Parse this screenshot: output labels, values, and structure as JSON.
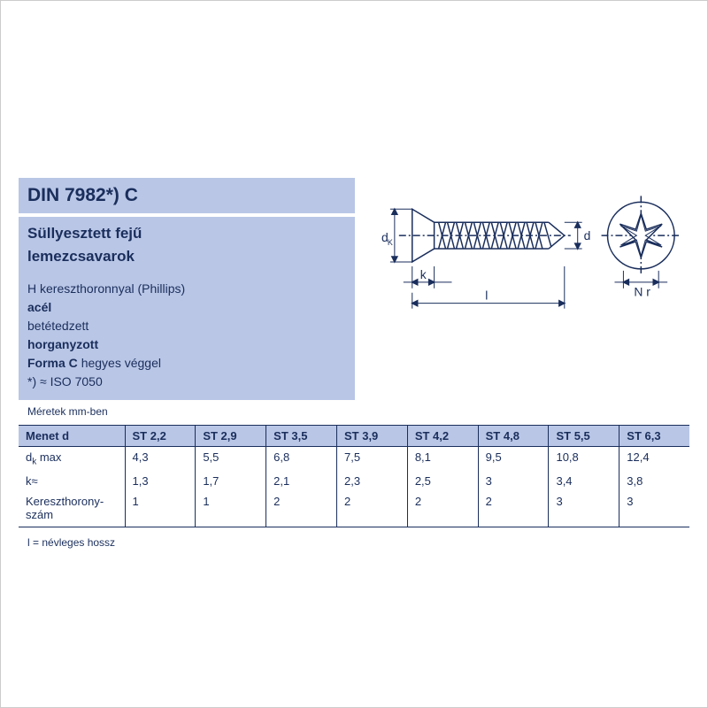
{
  "header": {
    "title": "DIN 7982*) C",
    "subtitle_line1": "Süllyesztett fejű",
    "subtitle_line2": "lemezcsavarok",
    "desc1_prefix": "H kereszthoronnyal ",
    "desc1_suffix": "(Phillips)",
    "desc2": "acél",
    "desc3": "betétedzett",
    "desc4": "horganyzott",
    "desc5_prefix": "Forma C ",
    "desc5_suffix": "hegyes véggel",
    "desc6": "*) ≈ ISO 7050",
    "dims_note": "Méretek mm-ben"
  },
  "diagram": {
    "dk_label": "d",
    "dk_sub": "K",
    "k_label": "k",
    "l_label": "l",
    "d_label": "d",
    "nr_label": "N r",
    "stroke": "#1a2e5c",
    "fill": "#ffffff"
  },
  "table": {
    "columns": [
      "Menet d",
      "ST 2,2",
      "ST 2,9",
      "ST 3,5",
      "ST 3,9",
      "ST 4,2",
      "ST 4,8",
      "ST 5,5",
      "ST 6,3"
    ],
    "rows": [
      {
        "label_html": "d<sub class='sub'>k</sub> max",
        "cells": [
          "4,3",
          "5,5",
          "6,8",
          "7,5",
          "8,1",
          "9,5",
          "10,8",
          "12,4"
        ]
      },
      {
        "label_html": "k≈",
        "cells": [
          "1,3",
          "1,7",
          "2,1",
          "2,3",
          "2,5",
          "3",
          "3,4",
          "3,8"
        ]
      },
      {
        "label_html": "Kereszthorony-<br>szám",
        "cells": [
          "1",
          "1",
          "2",
          "2",
          "2",
          "2",
          "3",
          "3"
        ]
      }
    ]
  },
  "footer": {
    "note": "l = névleges hossz"
  },
  "colors": {
    "header_bg": "#b9c6e6",
    "text": "#1a2e5c",
    "border": "#1a2e5c"
  }
}
